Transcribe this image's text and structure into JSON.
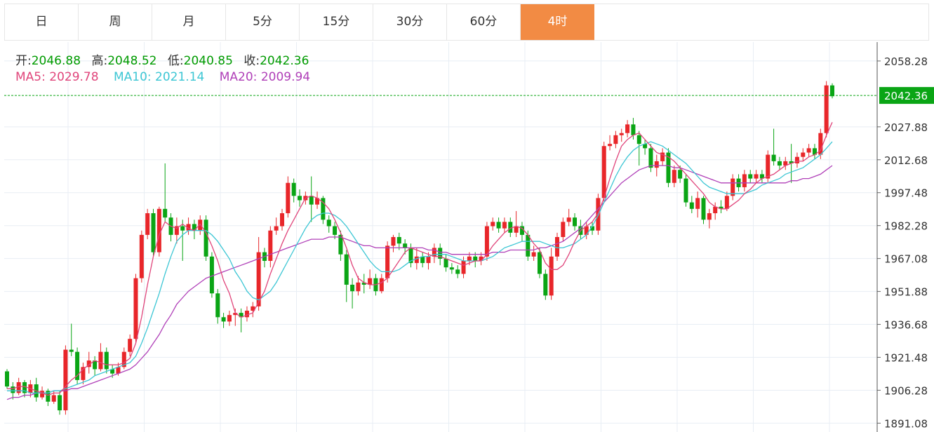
{
  "tabs": [
    {
      "label": "日",
      "active": false
    },
    {
      "label": "周",
      "active": false
    },
    {
      "label": "月",
      "active": false
    },
    {
      "label": "5分",
      "active": false
    },
    {
      "label": "15分",
      "active": false
    },
    {
      "label": "30分",
      "active": false
    },
    {
      "label": "60分",
      "active": false
    },
    {
      "label": "4时",
      "active": true
    }
  ],
  "ohlc_info": {
    "open_label": "开:",
    "open": "2046.88",
    "high_label": "高:",
    "high": "2048.52",
    "low_label": "低:",
    "low": "2040.85",
    "close_label": "收:",
    "close": "2042.36"
  },
  "ma_info": {
    "ma5_label": "MA5:",
    "ma5": "2029.78",
    "ma10_label": "MA10:",
    "ma10": "2021.14",
    "ma20_label": "MA20:",
    "ma20": "2009.94"
  },
  "colors": {
    "up": "#e8262a",
    "down": "#0aa515",
    "ma5": "#e0457b",
    "ma10": "#3cc6d4",
    "ma20": "#b040b8",
    "accent": "#f28b44",
    "price_tag": "#0aa515"
  },
  "chart_data": {
    "type": "candlestick",
    "y_ticks": [
      "2058.28",
      "2042.36",
      "2027.88",
      "2012.68",
      "1997.48",
      "1982.28",
      "1967.08",
      "1951.88",
      "1936.68",
      "1921.48",
      "1906.28",
      "1891.08"
    ],
    "ylim": [
      1887,
      2067
    ],
    "last_price": 2042.36,
    "last_price_label": "2042.36",
    "grid": true,
    "candles": [
      [
        1915,
        1908,
        1916,
        1907
      ],
      [
        1908,
        1905,
        1910,
        1902
      ],
      [
        1905,
        1910,
        1912,
        1904
      ],
      [
        1910,
        1905,
        1911,
        1903
      ],
      [
        1905,
        1909,
        1911,
        1903
      ],
      [
        1909,
        1903,
        1912,
        1901
      ],
      [
        1903,
        1906,
        1908,
        1902
      ],
      [
        1906,
        1901,
        1907,
        1899
      ],
      [
        1901,
        1904,
        1906,
        1900
      ],
      [
        1904,
        1897,
        1906,
        1895
      ],
      [
        1897,
        1925,
        1927,
        1895
      ],
      [
        1925,
        1924,
        1937,
        1922
      ],
      [
        1924,
        1911,
        1926,
        1909
      ],
      [
        1911,
        1917,
        1919,
        1909
      ],
      [
        1917,
        1920,
        1924,
        1914
      ],
      [
        1920,
        1916,
        1922,
        1913
      ],
      [
        1916,
        1924,
        1928,
        1915
      ],
      [
        1924,
        1916,
        1926,
        1914
      ],
      [
        1916,
        1914,
        1918,
        1912
      ],
      [
        1914,
        1917,
        1919,
        1913
      ],
      [
        1917,
        1924,
        1926,
        1916
      ],
      [
        1924,
        1930,
        1932,
        1922
      ],
      [
        1930,
        1958,
        1960,
        1928
      ],
      [
        1958,
        1978,
        1980,
        1956
      ],
      [
        1978,
        1988,
        1990,
        1976
      ],
      [
        1988,
        1970,
        1990,
        1968
      ],
      [
        1970,
        1990,
        1991,
        1968
      ],
      [
        1990,
        1986,
        2011,
        1984
      ],
      [
        1986,
        1978,
        1988,
        1975
      ],
      [
        1978,
        1982,
        1986,
        1974
      ],
      [
        1982,
        1980,
        1985,
        1966
      ],
      [
        1980,
        1983,
        1986,
        1978
      ],
      [
        1983,
        1980,
        1985,
        1976
      ],
      [
        1980,
        1985,
        1987,
        1978
      ],
      [
        1985,
        1968,
        1987,
        1966
      ],
      [
        1968,
        1951,
        1970,
        1949
      ],
      [
        1951,
        1940,
        1953,
        1937
      ],
      [
        1940,
        1938,
        1942,
        1935
      ],
      [
        1938,
        1941,
        1943,
        1936
      ],
      [
        1941,
        1942,
        1944,
        1936
      ],
      [
        1942,
        1940,
        1944,
        1933
      ],
      [
        1940,
        1943,
        1945,
        1938
      ],
      [
        1943,
        1945,
        1947,
        1940
      ],
      [
        1945,
        1970,
        1977,
        1943
      ],
      [
        1970,
        1966,
        1972,
        1963
      ],
      [
        1966,
        1980,
        1982,
        1963
      ],
      [
        1980,
        1982,
        1986,
        1978
      ],
      [
        1982,
        1988,
        1990,
        1980
      ],
      [
        1988,
        2002,
        2005,
        1986
      ],
      [
        2002,
        1996,
        2004,
        1993
      ],
      [
        1996,
        1994,
        1999,
        1991
      ],
      [
        1994,
        1996,
        1998,
        1992
      ],
      [
        1996,
        1992,
        2005,
        1984
      ],
      [
        1992,
        1995,
        1998,
        1990
      ],
      [
        1995,
        1985,
        1996,
        1983
      ],
      [
        1985,
        1982,
        1987,
        1979
      ],
      [
        1982,
        1978,
        1984,
        1976
      ],
      [
        1978,
        1969,
        1980,
        1966
      ],
      [
        1969,
        1955,
        1971,
        1947
      ],
      [
        1955,
        1952,
        1958,
        1944
      ],
      [
        1952,
        1956,
        1959,
        1950
      ],
      [
        1956,
        1955,
        1960,
        1951
      ],
      [
        1955,
        1958,
        1962,
        1953
      ],
      [
        1958,
        1952,
        1960,
        1950
      ],
      [
        1952,
        1958,
        1960,
        1951
      ],
      [
        1958,
        1973,
        1975,
        1956
      ],
      [
        1973,
        1977,
        1978,
        1970
      ],
      [
        1977,
        1974,
        1979,
        1971
      ],
      [
        1974,
        1972,
        1976,
        1969
      ],
      [
        1972,
        1965,
        1974,
        1963
      ],
      [
        1965,
        1968,
        1972,
        1962
      ],
      [
        1968,
        1965,
        1970,
        1963
      ],
      [
        1965,
        1968,
        1970,
        1962
      ],
      [
        1968,
        1972,
        1974,
        1965
      ],
      [
        1972,
        1967,
        1974,
        1964
      ],
      [
        1967,
        1963,
        1969,
        1961
      ],
      [
        1963,
        1962,
        1965,
        1960
      ],
      [
        1962,
        1960,
        1964,
        1958
      ],
      [
        1960,
        1966,
        1968,
        1958
      ],
      [
        1966,
        1968,
        1970,
        1964
      ],
      [
        1968,
        1966,
        1970,
        1963
      ],
      [
        1966,
        1968,
        1970,
        1964
      ],
      [
        1968,
        1982,
        1984,
        1966
      ],
      [
        1982,
        1984,
        1986,
        1980
      ],
      [
        1984,
        1981,
        1986,
        1979
      ],
      [
        1981,
        1984,
        1986,
        1979
      ],
      [
        1984,
        1979,
        1986,
        1977
      ],
      [
        1979,
        1982,
        1989,
        1977
      ],
      [
        1982,
        1978,
        1984,
        1975
      ],
      [
        1978,
        1968,
        1980,
        1966
      ],
      [
        1968,
        1970,
        1973,
        1966
      ],
      [
        1970,
        1960,
        1972,
        1958
      ],
      [
        1960,
        1950,
        1962,
        1948
      ],
      [
        1950,
        1968,
        1972,
        1948
      ],
      [
        1968,
        1977,
        1979,
        1966
      ],
      [
        1977,
        1984,
        1986,
        1975
      ],
      [
        1984,
        1986,
        1990,
        1982
      ],
      [
        1986,
        1982,
        1988,
        1980
      ],
      [
        1982,
        1978,
        1985,
        1976
      ],
      [
        1978,
        1982,
        1984,
        1976
      ],
      [
        1982,
        1980,
        1984,
        1978
      ],
      [
        1980,
        1995,
        1997,
        1978
      ],
      [
        1995,
        2019,
        2021,
        1993
      ],
      [
        2019,
        2020,
        2024,
        2017
      ],
      [
        2020,
        2024,
        2026,
        2018
      ],
      [
        2024,
        2025,
        2027,
        2021
      ],
      [
        2025,
        2029,
        2031,
        2023
      ],
      [
        2029,
        2024,
        2032,
        2022
      ],
      [
        2024,
        2020,
        2026,
        2010
      ],
      [
        2020,
        2018,
        2022,
        2015
      ],
      [
        2018,
        2009,
        2020,
        2007
      ],
      [
        2009,
        2012,
        2015,
        2005
      ],
      [
        2012,
        2016,
        2018,
        2010
      ],
      [
        2016,
        2002,
        2018,
        2000
      ],
      [
        2002,
        2008,
        2010,
        2000
      ],
      [
        2008,
        2004,
        2010,
        2002
      ],
      [
        2004,
        1993,
        2006,
        1991
      ],
      [
        1993,
        1990,
        1996,
        1988
      ],
      [
        1990,
        1995,
        1998,
        1986
      ],
      [
        1995,
        1985,
        1996,
        1983
      ],
      [
        1985,
        1988,
        1990,
        1981
      ],
      [
        1988,
        1991,
        1993,
        1985
      ],
      [
        1991,
        1990,
        1994,
        1988
      ],
      [
        1990,
        1996,
        1998,
        1989
      ],
      [
        1996,
        2004,
        2006,
        1994
      ],
      [
        2004,
        2000,
        2006,
        1998
      ],
      [
        2000,
        2006,
        2008,
        1998
      ],
      [
        2006,
        2004,
        2008,
        2002
      ],
      [
        2004,
        2006,
        2008,
        2002
      ],
      [
        2006,
        2004,
        2008,
        2002
      ],
      [
        2004,
        2015,
        2017,
        2002
      ],
      [
        2015,
        2012,
        2027,
        2010
      ],
      [
        2012,
        2010,
        2014,
        2008
      ],
      [
        2010,
        2012,
        2014,
        2008
      ],
      [
        2012,
        2011,
        2020,
        2002
      ],
      [
        2011,
        2014,
        2016,
        2009
      ],
      [
        2014,
        2016,
        2018,
        2012
      ],
      [
        2016,
        2018,
        2020,
        2014
      ],
      [
        2018,
        2015,
        2020,
        2013
      ],
      [
        2015,
        2025,
        2027,
        2013
      ],
      [
        2025,
        2047,
        2049,
        2023
      ],
      [
        2047,
        2042,
        2048,
        2041
      ]
    ],
    "ma5": [
      1907,
      1907,
      1908,
      1908,
      1907,
      1906,
      1905,
      1904,
      1905,
      1905,
      1908,
      1911,
      1913,
      1916,
      1918,
      1920,
      1919,
      1918,
      1918,
      1918,
      1919,
      1921,
      1928,
      1940,
      1955,
      1968,
      1978,
      1984,
      1982,
      1981,
      1983,
      1981,
      1980,
      1983,
      1979,
      1973,
      1966,
      1957,
      1951,
      1942,
      1940,
      1941,
      1942,
      1947,
      1952,
      1960,
      1967,
      1974,
      1980,
      1985,
      1990,
      1995,
      1996,
      1995,
      1993,
      1990,
      1985,
      1979,
      1972,
      1964,
      1958,
      1956,
      1955,
      1955,
      1956,
      1958,
      1962,
      1966,
      1970,
      1972,
      1971,
      1970,
      1969,
      1968,
      1968,
      1967,
      1966,
      1965,
      1964,
      1965,
      1966,
      1966,
      1969,
      1973,
      1976,
      1979,
      1981,
      1982,
      1981,
      1978,
      1974,
      1971,
      1965,
      1962,
      1962,
      1964,
      1969,
      1975,
      1980,
      1982,
      1984,
      1988,
      1995,
      2004,
      2012,
      2019,
      2022,
      2024,
      2025,
      2022,
      2019,
      2016,
      2015,
      2014,
      2012,
      2009,
      2006,
      2003,
      2000,
      1997,
      1993,
      1991,
      1990,
      1990,
      1992,
      1994,
      1997,
      1999,
      2002,
      2004,
      2005,
      2006,
      2008,
      2010,
      2011,
      2012,
      2012,
      2014,
      2015,
      2017,
      2024,
      2030
    ],
    "ma10": [
      1906,
      1906,
      1906,
      1906,
      1905,
      1905,
      1905,
      1905,
      1906,
      1906,
      1907,
      1908,
      1909,
      1910,
      1911,
      1913,
      1914,
      1915,
      1916,
      1917,
      1918,
      1919,
      1922,
      1928,
      1935,
      1943,
      1951,
      1960,
      1968,
      1975,
      1978,
      1980,
      1980,
      1980,
      1980,
      1978,
      1975,
      1971,
      1967,
      1961,
      1957,
      1952,
      1949,
      1948,
      1950,
      1952,
      1956,
      1961,
      1966,
      1971,
      1976,
      1981,
      1985,
      1987,
      1988,
      1988,
      1987,
      1985,
      1982,
      1978,
      1974,
      1970,
      1966,
      1963,
      1961,
      1961,
      1961,
      1962,
      1964,
      1966,
      1967,
      1968,
      1968,
      1969,
      1969,
      1969,
      1968,
      1967,
      1966,
      1966,
      1966,
      1966,
      1967,
      1968,
      1970,
      1972,
      1973,
      1974,
      1975,
      1975,
      1975,
      1975,
      1974,
      1973,
      1972,
      1972,
      1973,
      1974,
      1976,
      1978,
      1982,
      1987,
      1993,
      1999,
      2005,
      2010,
      2014,
      2017,
      2019,
      2020,
      2021,
      2020,
      2019,
      2017,
      2015,
      2013,
      2011,
      2008,
      2005,
      2002,
      2000,
      1999,
      1998,
      1997,
      1997,
      1997,
      1997,
      1998,
      1999,
      2001,
      2002,
      2003,
      2004,
      2006,
      2007,
      2008,
      2009,
      2011,
      2013,
      2015,
      2018,
      2021
    ],
    "ma20": [
      1902,
      1903,
      1903,
      1904,
      1904,
      1905,
      1905,
      1905,
      1906,
      1906,
      1906,
      1907,
      1907,
      1908,
      1909,
      1910,
      1911,
      1912,
      1913,
      1914,
      1915,
      1916,
      1918,
      1921,
      1924,
      1928,
      1932,
      1937,
      1941,
      1946,
      1949,
      1952,
      1954,
      1956,
      1958,
      1959,
      1960,
      1961,
      1962,
      1963,
      1964,
      1965,
      1966,
      1967,
      1968,
      1969,
      1970,
      1971,
      1972,
      1973,
      1974,
      1975,
      1976,
      1976,
      1976,
      1977,
      1977,
      1977,
      1976,
      1975,
      1974,
      1973,
      1973,
      1972,
      1972,
      1972,
      1972,
      1972,
      1972,
      1972,
      1972,
      1972,
      1971,
      1971,
      1970,
      1970,
      1969,
      1969,
      1969,
      1969,
      1969,
      1969,
      1969,
      1970,
      1970,
      1970,
      1971,
      1971,
      1971,
      1971,
      1971,
      1972,
      1972,
      1973,
      1974,
      1975,
      1977,
      1979,
      1981,
      1984,
      1987,
      1990,
      1993,
      1996,
      1999,
      2002,
      2004,
      2006,
      2008,
      2009,
      2010,
      2010,
      2010,
      2010,
      2009,
      2009,
      2008,
      2007,
      2006,
      2005,
      2004,
      2003,
      2002,
      2002,
      2002,
      2002,
      2002,
      2002,
      2002,
      2002,
      2002,
      2002,
      2002,
      2002,
      2003,
      2003,
      2004,
      2004,
      2005,
      2006,
      2008,
      2010
    ]
  }
}
